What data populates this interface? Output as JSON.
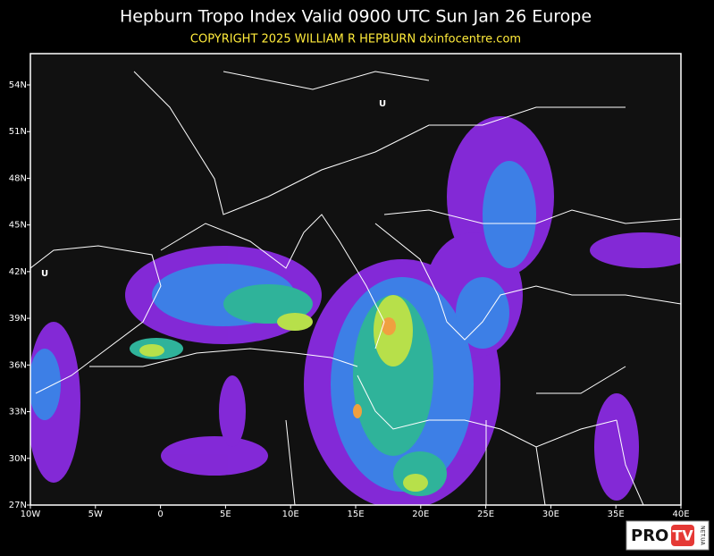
{
  "header": {
    "title": "Hepburn Tropo Index Valid 0900 UTC Sun Jan 26 Europe",
    "copyright": "COPYRIGHT 2025  WILLIAM R HEPBURN  dxinfocentre.com"
  },
  "map": {
    "lat_ticks": [
      "54N",
      "51N",
      "48N",
      "45N",
      "42N",
      "39N",
      "36N",
      "33N",
      "30N",
      "27N"
    ],
    "lon_ticks": [
      "10W",
      "5W",
      "0",
      "5E",
      "10E",
      "15E",
      "20E",
      "25E",
      "30E",
      "35E",
      "40E"
    ],
    "markers": [
      "U",
      "U"
    ]
  },
  "logo": {
    "brand": "PRO",
    "badge": "TV",
    "domain": "NET.UA"
  }
}
